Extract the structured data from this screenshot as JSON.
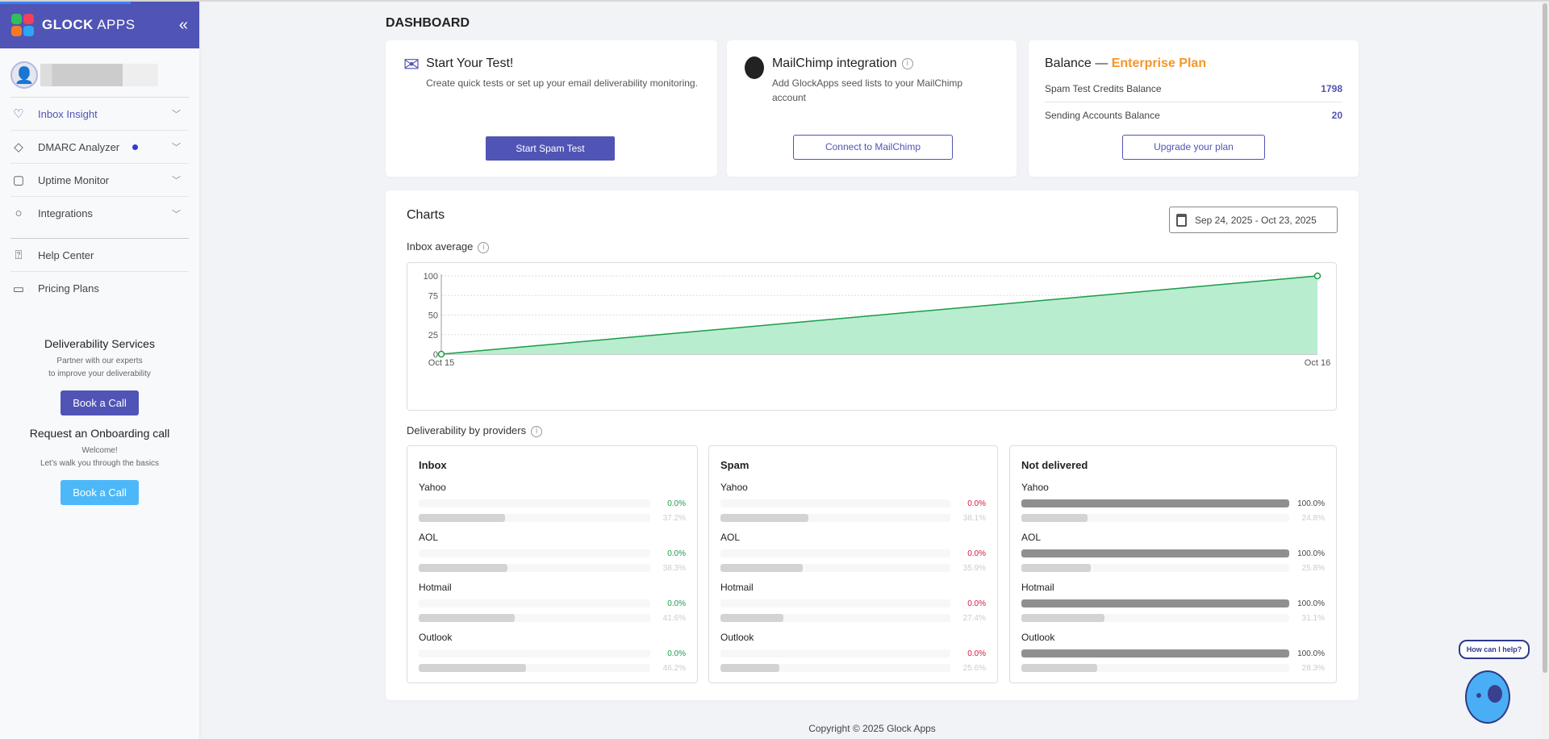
{
  "sidebar": {
    "brand_bold": "GLOCK",
    "brand_light": "APPS",
    "collapse_icon": "double-chevron-left",
    "nav": [
      {
        "label": "Inbox Insight",
        "icon": "heart-check-icon"
      },
      {
        "label": "DMARC Analyzer",
        "icon": "diamond-icon"
      },
      {
        "label": "Uptime Monitor",
        "icon": "square-icon"
      },
      {
        "label": "Integrations",
        "icon": "circle-icon"
      }
    ],
    "nav2": [
      {
        "label": "Help Center",
        "icon": "help-icon"
      },
      {
        "label": "Pricing Plans",
        "icon": "credit-card-icon"
      }
    ],
    "promo1": {
      "title": "Deliverability Services",
      "line1": "Partner with our experts",
      "line2": "to improve your deliverability",
      "button": "Book a Call"
    },
    "promo2": {
      "title": "Request an Onboarding call",
      "line1": "Welcome!",
      "line2": "Let’s walk you through the basics",
      "button": "Book a Call"
    }
  },
  "page_title": "DASHBOARD",
  "test_card": {
    "title": "Start Your Test!",
    "desc": "Create quick tests or set up your email deliverability monitoring.",
    "button": "Start Spam Test"
  },
  "mailchimp_card": {
    "title": "MailChimp integration",
    "desc": "Add GlockApps seed lists to your MailChimp account",
    "button": "Connect to MailChimp"
  },
  "balance_card": {
    "title": "Balance —",
    "plan": "Enterprise Plan",
    "rows": [
      {
        "label": "Spam Test Credits Balance",
        "value": "1798"
      },
      {
        "label": "Sending Accounts Balance",
        "value": "20"
      }
    ],
    "button": "Upgrade your plan"
  },
  "charts": {
    "title": "Charts",
    "date_range": "Sep 24, 2025 - Oct 23, 2025",
    "inbox_avg_label": "Inbox average",
    "providers_label": "Deliverability by providers"
  },
  "chart_data": {
    "type": "area",
    "title": "Inbox average",
    "x": [
      "Oct 15",
      "Oct 16"
    ],
    "values": [
      0,
      100
    ],
    "ylim": [
      0,
      100
    ],
    "yticks": [
      0,
      25,
      50,
      75,
      100
    ],
    "grid": true,
    "color": "#1a9c4a",
    "fill": "#b9edcf"
  },
  "providers": [
    {
      "title": "Inbox",
      "color": "#1a9c4a",
      "bar": "#f7f7f7",
      "items": [
        {
          "name": "Yahoo",
          "value": "0.0%",
          "pct": 0,
          "avg": "37.2%",
          "avg_pct": 37.2
        },
        {
          "name": "AOL",
          "value": "0.0%",
          "pct": 0,
          "avg": "38.3%",
          "avg_pct": 38.3
        },
        {
          "name": "Hotmail",
          "value": "0.0%",
          "pct": 0,
          "avg": "41.6%",
          "avg_pct": 41.6
        },
        {
          "name": "Outlook",
          "value": "0.0%",
          "pct": 0,
          "avg": "46.2%",
          "avg_pct": 46.2
        }
      ]
    },
    {
      "title": "Spam",
      "color": "#d9163e",
      "bar": "#f7f7f7",
      "items": [
        {
          "name": "Yahoo",
          "value": "0.0%",
          "pct": 0,
          "avg": "38.1%",
          "avg_pct": 38.1
        },
        {
          "name": "AOL",
          "value": "0.0%",
          "pct": 0,
          "avg": "35.9%",
          "avg_pct": 35.9
        },
        {
          "name": "Hotmail",
          "value": "0.0%",
          "pct": 0,
          "avg": "27.4%",
          "avg_pct": 27.4
        },
        {
          "name": "Outlook",
          "value": "0.0%",
          "pct": 0,
          "avg": "25.6%",
          "avg_pct": 25.6
        }
      ]
    },
    {
      "title": "Not delivered",
      "color": "#444444",
      "bar": "#8f8f8f",
      "items": [
        {
          "name": "Yahoo",
          "value": "100.0%",
          "pct": 100,
          "avg": "24.8%",
          "avg_pct": 24.8
        },
        {
          "name": "AOL",
          "value": "100.0%",
          "pct": 100,
          "avg": "25.8%",
          "avg_pct": 25.8
        },
        {
          "name": "Hotmail",
          "value": "100.0%",
          "pct": 100,
          "avg": "31.1%",
          "avg_pct": 31.1
        },
        {
          "name": "Outlook",
          "value": "100.0%",
          "pct": 100,
          "avg": "28.3%",
          "avg_pct": 28.3
        }
      ]
    }
  ],
  "footer": "Copyright © 2025 Glock Apps",
  "chat": {
    "bubble": "How can I help?"
  }
}
